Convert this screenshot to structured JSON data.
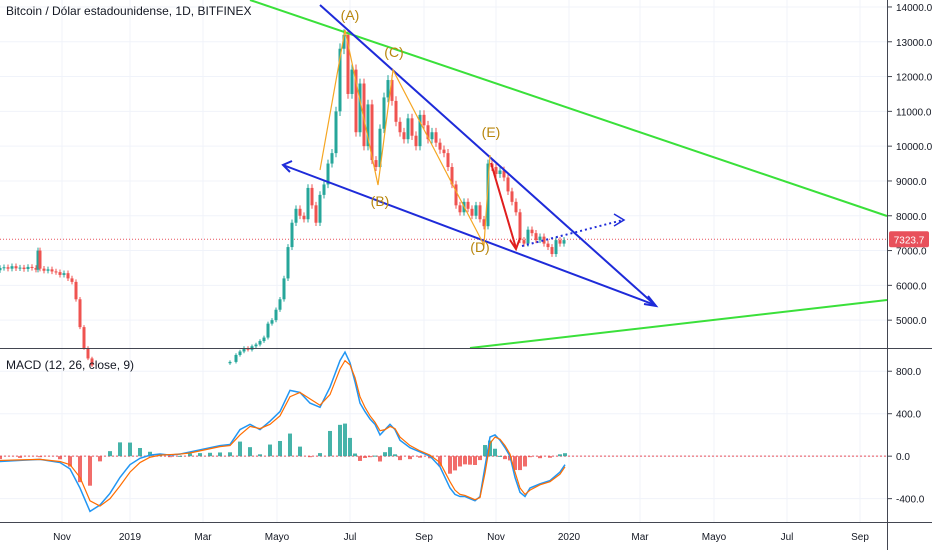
{
  "chart_data": {
    "type": "candlestick",
    "title": "Bitcoin / Dólar estadounidense, 1D, BITFINEX",
    "price_axis": {
      "ticks": [
        "14000.0",
        "13000.0",
        "12000.0",
        "11000.0",
        "10000.0",
        "9000.0",
        "8000.0",
        "7000.0",
        "6000.0",
        "5000.0"
      ],
      "tick_values": [
        14000,
        13000,
        12000,
        11000,
        10000,
        9000,
        8000,
        7000,
        6000,
        5000
      ],
      "ylim": [
        4200,
        14200
      ],
      "last_price_label": "7323.7",
      "last_price": 7323.7
    },
    "time_axis": {
      "labels": [
        "Nov",
        "2019",
        "Mar",
        "Mayo",
        "Jul",
        "Sep",
        "Nov",
        "2020",
        "Mar",
        "Mayo",
        "Jul",
        "Sep"
      ]
    },
    "price_series": {
      "name": "BTCUSD",
      "points": [
        [
          0,
          6500
        ],
        [
          4,
          6520
        ],
        [
          8,
          6480
        ],
        [
          12,
          6550
        ],
        [
          16,
          6490
        ],
        [
          20,
          6510
        ],
        [
          24,
          6470
        ],
        [
          28,
          6530
        ],
        [
          32,
          6500
        ],
        [
          36,
          6450
        ],
        [
          38,
          7000
        ],
        [
          40,
          6480
        ],
        [
          44,
          6420
        ],
        [
          48,
          6460
        ],
        [
          52,
          6400
        ],
        [
          56,
          6380
        ],
        [
          60,
          6300
        ],
        [
          64,
          6350
        ],
        [
          68,
          6200
        ],
        [
          72,
          6100
        ],
        [
          76,
          5600
        ],
        [
          80,
          4800
        ],
        [
          84,
          4200
        ],
        [
          88,
          3900
        ],
        [
          92,
          3700
        ],
        [
          230,
          3800
        ],
        [
          236,
          4000
        ],
        [
          240,
          4100
        ],
        [
          244,
          4200
        ],
        [
          248,
          4150
        ],
        [
          252,
          4250
        ],
        [
          256,
          4300
        ],
        [
          260,
          4400
        ],
        [
          264,
          4500
        ],
        [
          268,
          4900
        ],
        [
          272,
          5000
        ],
        [
          276,
          5300
        ],
        [
          280,
          5600
        ],
        [
          284,
          6200
        ],
        [
          288,
          7100
        ],
        [
          292,
          7800
        ],
        [
          296,
          8200
        ],
        [
          300,
          8000
        ],
        [
          304,
          7900
        ],
        [
          308,
          8800
        ],
        [
          312,
          8300
        ],
        [
          316,
          7800
        ],
        [
          320,
          8600
        ],
        [
          324,
          8900
        ],
        [
          328,
          9500
        ],
        [
          332,
          9800
        ],
        [
          336,
          11000
        ],
        [
          340,
          12800
        ],
        [
          344,
          13200
        ],
        [
          348,
          11500
        ],
        [
          352,
          12200
        ],
        [
          356,
          10400
        ],
        [
          360,
          11800
        ],
        [
          364,
          10000
        ],
        [
          368,
          11200
        ],
        [
          372,
          9600
        ],
        [
          376,
          9400
        ],
        [
          380,
          10500
        ],
        [
          384,
          11400
        ],
        [
          388,
          11900
        ],
        [
          392,
          11300
        ],
        [
          396,
          10700
        ],
        [
          400,
          10400
        ],
        [
          404,
          10200
        ],
        [
          408,
          10800
        ],
        [
          412,
          10300
        ],
        [
          416,
          10000
        ],
        [
          420,
          10900
        ],
        [
          424,
          10600
        ],
        [
          428,
          10200
        ],
        [
          432,
          10400
        ],
        [
          436,
          10100
        ],
        [
          440,
          9900
        ],
        [
          444,
          9800
        ],
        [
          448,
          9400
        ],
        [
          452,
          8900
        ],
        [
          456,
          8300
        ],
        [
          460,
          8100
        ],
        [
          464,
          8400
        ],
        [
          468,
          8200
        ],
        [
          472,
          8000
        ],
        [
          476,
          8300
        ],
        [
          480,
          7900
        ],
        [
          484,
          7700
        ],
        [
          488,
          9500
        ],
        [
          492,
          9400
        ],
        [
          496,
          9200
        ],
        [
          500,
          9300
        ],
        [
          504,
          9100
        ],
        [
          508,
          8700
        ],
        [
          512,
          8400
        ],
        [
          516,
          8100
        ],
        [
          520,
          7300
        ],
        [
          524,
          7200
        ],
        [
          528,
          7600
        ],
        [
          532,
          7500
        ],
        [
          536,
          7300
        ],
        [
          540,
          7400
        ],
        [
          544,
          7200
        ],
        [
          548,
          7100
        ],
        [
          552,
          6900
        ],
        [
          556,
          7300
        ],
        [
          560,
          7200
        ],
        [
          564,
          7300
        ]
      ]
    },
    "annotations": [
      "(A)",
      "(B)",
      "(C)",
      "(D)",
      "(E)"
    ],
    "macd": {
      "label": "MACD (12, 26, close, 9)",
      "ticks": [
        "800.0",
        "400.0",
        "0.0",
        "-400.0"
      ],
      "tick_values": [
        800,
        400,
        0,
        -400
      ],
      "ylim": [
        -620,
        1000
      ],
      "macd_line": [
        [
          0,
          -50
        ],
        [
          20,
          -40
        ],
        [
          40,
          -30
        ],
        [
          60,
          -60
        ],
        [
          70,
          -120
        ],
        [
          80,
          -300
        ],
        [
          90,
          -520
        ],
        [
          100,
          -460
        ],
        [
          110,
          -350
        ],
        [
          120,
          -200
        ],
        [
          130,
          -80
        ],
        [
          140,
          -20
        ],
        [
          150,
          10
        ],
        [
          160,
          20
        ],
        [
          170,
          10
        ],
        [
          180,
          20
        ],
        [
          190,
          40
        ],
        [
          200,
          60
        ],
        [
          210,
          80
        ],
        [
          220,
          100
        ],
        [
          230,
          110
        ],
        [
          240,
          250
        ],
        [
          250,
          300
        ],
        [
          260,
          250
        ],
        [
          270,
          330
        ],
        [
          280,
          420
        ],
        [
          290,
          620
        ],
        [
          300,
          600
        ],
        [
          310,
          500
        ],
        [
          320,
          460
        ],
        [
          330,
          650
        ],
        [
          340,
          900
        ],
        [
          345,
          980
        ],
        [
          350,
          880
        ],
        [
          355,
          700
        ],
        [
          360,
          500
        ],
        [
          365,
          420
        ],
        [
          370,
          350
        ],
        [
          375,
          300
        ],
        [
          380,
          200
        ],
        [
          385,
          250
        ],
        [
          390,
          300
        ],
        [
          395,
          250
        ],
        [
          400,
          150
        ],
        [
          410,
          80
        ],
        [
          420,
          40
        ],
        [
          430,
          0
        ],
        [
          440,
          -100
        ],
        [
          450,
          -300
        ],
        [
          455,
          -360
        ],
        [
          460,
          -380
        ],
        [
          465,
          -380
        ],
        [
          470,
          -400
        ],
        [
          475,
          -420
        ],
        [
          480,
          -380
        ],
        [
          485,
          -100
        ],
        [
          490,
          180
        ],
        [
          495,
          200
        ],
        [
          500,
          150
        ],
        [
          505,
          80
        ],
        [
          510,
          0
        ],
        [
          515,
          -200
        ],
        [
          520,
          -340
        ],
        [
          525,
          -380
        ],
        [
          530,
          -300
        ],
        [
          540,
          -260
        ],
        [
          550,
          -230
        ],
        [
          560,
          -150
        ],
        [
          565,
          -80
        ]
      ],
      "signal_line": [
        [
          0,
          -40
        ],
        [
          20,
          -35
        ],
        [
          40,
          -30
        ],
        [
          60,
          -50
        ],
        [
          70,
          -80
        ],
        [
          80,
          -200
        ],
        [
          90,
          -420
        ],
        [
          100,
          -470
        ],
        [
          110,
          -400
        ],
        [
          120,
          -280
        ],
        [
          130,
          -150
        ],
        [
          140,
          -60
        ],
        [
          150,
          -10
        ],
        [
          160,
          10
        ],
        [
          170,
          15
        ],
        [
          180,
          20
        ],
        [
          190,
          30
        ],
        [
          200,
          50
        ],
        [
          210,
          70
        ],
        [
          220,
          90
        ],
        [
          230,
          100
        ],
        [
          240,
          200
        ],
        [
          250,
          280
        ],
        [
          260,
          260
        ],
        [
          270,
          300
        ],
        [
          280,
          380
        ],
        [
          290,
          560
        ],
        [
          300,
          600
        ],
        [
          310,
          540
        ],
        [
          320,
          480
        ],
        [
          330,
          580
        ],
        [
          340,
          820
        ],
        [
          345,
          900
        ],
        [
          350,
          860
        ],
        [
          355,
          740
        ],
        [
          360,
          560
        ],
        [
          365,
          460
        ],
        [
          370,
          380
        ],
        [
          375,
          320
        ],
        [
          380,
          240
        ],
        [
          385,
          250
        ],
        [
          390,
          280
        ],
        [
          395,
          260
        ],
        [
          400,
          180
        ],
        [
          410,
          100
        ],
        [
          420,
          50
        ],
        [
          430,
          10
        ],
        [
          440,
          -60
        ],
        [
          450,
          -240
        ],
        [
          455,
          -320
        ],
        [
          460,
          -360
        ],
        [
          465,
          -370
        ],
        [
          470,
          -390
        ],
        [
          475,
          -410
        ],
        [
          480,
          -390
        ],
        [
          485,
          -160
        ],
        [
          490,
          120
        ],
        [
          495,
          180
        ],
        [
          500,
          160
        ],
        [
          505,
          100
        ],
        [
          510,
          20
        ],
        [
          515,
          -150
        ],
        [
          520,
          -300
        ],
        [
          525,
          -360
        ],
        [
          530,
          -320
        ],
        [
          540,
          -270
        ],
        [
          550,
          -240
        ],
        [
          560,
          -170
        ],
        [
          565,
          -100
        ]
      ]
    }
  }
}
